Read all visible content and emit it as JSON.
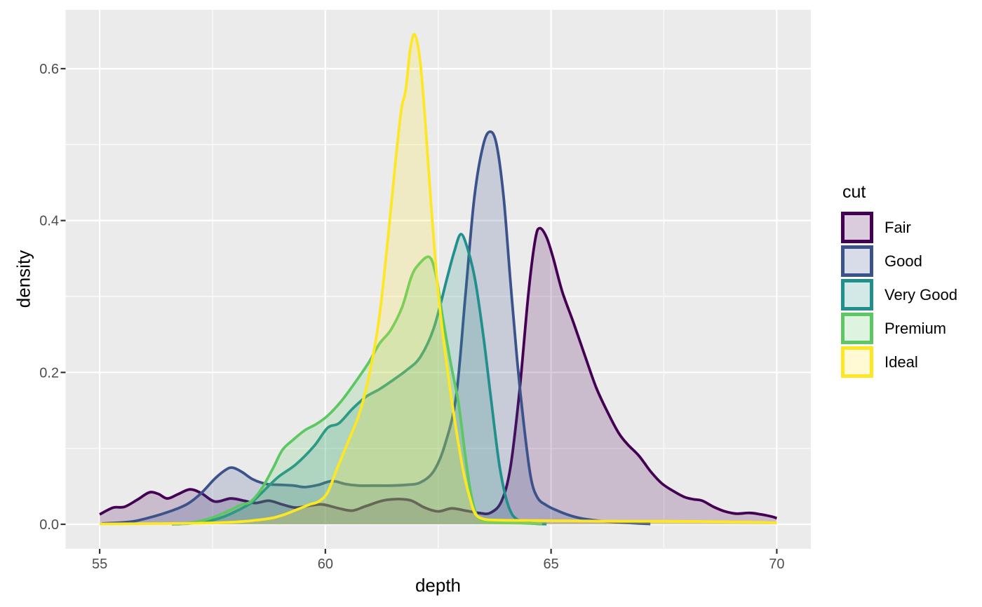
{
  "chart_data": {
    "type": "area",
    "subtype": "kernel-density",
    "title": "",
    "xlabel": "depth",
    "ylabel": "density",
    "legend_title": "cut",
    "legend_position": "right",
    "grid": "major-and-minor-on",
    "x_ticks": {
      "values": [
        55,
        60,
        65,
        70
      ],
      "labels": [
        "55",
        "60",
        "65",
        "70"
      ]
    },
    "y_ticks": {
      "values": [
        0.0,
        0.2,
        0.4,
        0.6
      ],
      "labels": [
        "0.0",
        "0.2",
        "0.4",
        "0.6"
      ]
    },
    "xlim": [
      54.245,
      70.755
    ],
    "ylim": [
      -0.0323,
      0.6775
    ],
    "panel_bg_color": "#EBEBEB",
    "grid_color": "#FFFFFF",
    "tick_mark_color": "#333333",
    "tick_label_color": "#4D4D4D",
    "fill_alpha": 0.2,
    "line_width": 3.8,
    "series": [
      {
        "name": "Fair",
        "color": "#440154",
        "points": [
          [
            55.0,
            0.013
          ],
          [
            55.3,
            0.022
          ],
          [
            55.55,
            0.023
          ],
          [
            55.85,
            0.033
          ],
          [
            56.1,
            0.042
          ],
          [
            56.3,
            0.04
          ],
          [
            56.5,
            0.034
          ],
          [
            56.75,
            0.04
          ],
          [
            57.0,
            0.046
          ],
          [
            57.25,
            0.041
          ],
          [
            57.55,
            0.03
          ],
          [
            57.9,
            0.034
          ],
          [
            58.2,
            0.031
          ],
          [
            58.45,
            0.028
          ],
          [
            58.75,
            0.031
          ],
          [
            59.05,
            0.026
          ],
          [
            59.35,
            0.022
          ],
          [
            59.7,
            0.025
          ],
          [
            59.95,
            0.026
          ],
          [
            60.3,
            0.021
          ],
          [
            60.6,
            0.018
          ],
          [
            60.9,
            0.024
          ],
          [
            61.35,
            0.032
          ],
          [
            61.85,
            0.032
          ],
          [
            62.2,
            0.022
          ],
          [
            62.5,
            0.017
          ],
          [
            62.8,
            0.021
          ],
          [
            63.1,
            0.018
          ],
          [
            63.4,
            0.015
          ],
          [
            63.65,
            0.015
          ],
          [
            63.9,
            0.03
          ],
          [
            64.1,
            0.075
          ],
          [
            64.3,
            0.175
          ],
          [
            64.5,
            0.305
          ],
          [
            64.65,
            0.375
          ],
          [
            64.75,
            0.39
          ],
          [
            64.9,
            0.378
          ],
          [
            65.05,
            0.35
          ],
          [
            65.25,
            0.306
          ],
          [
            65.5,
            0.265
          ],
          [
            65.75,
            0.222
          ],
          [
            66.0,
            0.18
          ],
          [
            66.25,
            0.148
          ],
          [
            66.5,
            0.12
          ],
          [
            66.7,
            0.105
          ],
          [
            66.95,
            0.09
          ],
          [
            67.2,
            0.07
          ],
          [
            67.45,
            0.054
          ],
          [
            67.7,
            0.044
          ],
          [
            67.95,
            0.036
          ],
          [
            68.15,
            0.033
          ],
          [
            68.35,
            0.031
          ],
          [
            68.6,
            0.023
          ],
          [
            68.85,
            0.017
          ],
          [
            69.1,
            0.014
          ],
          [
            69.4,
            0.015
          ],
          [
            69.65,
            0.013
          ],
          [
            69.9,
            0.01
          ],
          [
            70.0,
            0.008
          ]
        ]
      },
      {
        "name": "Good",
        "color": "#3B528B",
        "points": [
          [
            55.05,
            0.001
          ],
          [
            55.4,
            0.002
          ],
          [
            55.75,
            0.004
          ],
          [
            56.05,
            0.008
          ],
          [
            56.35,
            0.013
          ],
          [
            56.65,
            0.019
          ],
          [
            56.95,
            0.027
          ],
          [
            57.25,
            0.041
          ],
          [
            57.55,
            0.06
          ],
          [
            57.8,
            0.072
          ],
          [
            57.95,
            0.0745
          ],
          [
            58.15,
            0.069
          ],
          [
            58.4,
            0.059
          ],
          [
            58.7,
            0.053
          ],
          [
            59.0,
            0.052
          ],
          [
            59.3,
            0.051
          ],
          [
            59.55,
            0.049
          ],
          [
            59.85,
            0.052
          ],
          [
            60.15,
            0.057
          ],
          [
            60.45,
            0.053
          ],
          [
            60.75,
            0.051
          ],
          [
            61.1,
            0.051
          ],
          [
            61.45,
            0.051
          ],
          [
            61.8,
            0.052
          ],
          [
            62.1,
            0.055
          ],
          [
            62.4,
            0.07
          ],
          [
            62.65,
            0.105
          ],
          [
            62.9,
            0.17
          ],
          [
            63.1,
            0.3
          ],
          [
            63.3,
            0.43
          ],
          [
            63.5,
            0.5
          ],
          [
            63.66,
            0.517
          ],
          [
            63.8,
            0.498
          ],
          [
            63.95,
            0.43
          ],
          [
            64.1,
            0.32
          ],
          [
            64.25,
            0.215
          ],
          [
            64.4,
            0.13
          ],
          [
            64.55,
            0.062
          ],
          [
            64.7,
            0.035
          ],
          [
            64.9,
            0.025
          ],
          [
            65.1,
            0.019
          ],
          [
            65.35,
            0.013
          ],
          [
            65.65,
            0.008
          ],
          [
            66.0,
            0.005
          ],
          [
            66.4,
            0.003
          ],
          [
            66.8,
            0.0015
          ],
          [
            67.2,
            0.0005
          ]
        ]
      },
      {
        "name": "Very Good",
        "color": "#21908C",
        "points": [
          [
            56.6,
            0.0003
          ],
          [
            57.0,
            0.001
          ],
          [
            57.4,
            0.004
          ],
          [
            57.75,
            0.01
          ],
          [
            58.05,
            0.018
          ],
          [
            58.35,
            0.028
          ],
          [
            58.6,
            0.042
          ],
          [
            58.95,
            0.062
          ],
          [
            59.35,
            0.079
          ],
          [
            59.75,
            0.103
          ],
          [
            60.05,
            0.127
          ],
          [
            60.3,
            0.133
          ],
          [
            60.6,
            0.152
          ],
          [
            60.9,
            0.168
          ],
          [
            61.2,
            0.178
          ],
          [
            61.5,
            0.19
          ],
          [
            61.8,
            0.203
          ],
          [
            62.1,
            0.22
          ],
          [
            62.4,
            0.258
          ],
          [
            62.7,
            0.325
          ],
          [
            62.85,
            0.358
          ],
          [
            63.0,
            0.382
          ],
          [
            63.15,
            0.363
          ],
          [
            63.32,
            0.321
          ],
          [
            63.5,
            0.248
          ],
          [
            63.68,
            0.16
          ],
          [
            63.85,
            0.08
          ],
          [
            64.0,
            0.035
          ],
          [
            64.15,
            0.012
          ],
          [
            64.35,
            0.004
          ],
          [
            64.6,
            0.001
          ],
          [
            64.9,
            0.0003
          ]
        ]
      },
      {
        "name": "Premium",
        "color": "#5DC863",
        "points": [
          [
            56.8,
            0.0005
          ],
          [
            57.2,
            0.004
          ],
          [
            57.55,
            0.01
          ],
          [
            57.9,
            0.019
          ],
          [
            58.15,
            0.026
          ],
          [
            58.35,
            0.03
          ],
          [
            58.6,
            0.048
          ],
          [
            58.85,
            0.075
          ],
          [
            59.05,
            0.098
          ],
          [
            59.3,
            0.112
          ],
          [
            59.55,
            0.124
          ],
          [
            59.8,
            0.132
          ],
          [
            60.05,
            0.143
          ],
          [
            60.35,
            0.162
          ],
          [
            60.65,
            0.186
          ],
          [
            60.95,
            0.212
          ],
          [
            61.2,
            0.238
          ],
          [
            61.45,
            0.256
          ],
          [
            61.7,
            0.286
          ],
          [
            61.9,
            0.325
          ],
          [
            62.05,
            0.341
          ],
          [
            62.3,
            0.352
          ],
          [
            62.45,
            0.328
          ],
          [
            62.6,
            0.272
          ],
          [
            62.8,
            0.205
          ],
          [
            62.95,
            0.16
          ],
          [
            63.1,
            0.09
          ],
          [
            63.22,
            0.042
          ],
          [
            63.35,
            0.012
          ],
          [
            63.5,
            0.004
          ],
          [
            63.8,
            0.002
          ],
          [
            64.3,
            0.0015
          ],
          [
            64.8,
            0.0005
          ]
        ]
      },
      {
        "name": "Ideal",
        "color": "#FDE725",
        "points": [
          [
            55.0,
            0.0005
          ],
          [
            56.0,
            0.0008
          ],
          [
            57.0,
            0.0012
          ],
          [
            57.6,
            0.002
          ],
          [
            58.0,
            0.003
          ],
          [
            58.4,
            0.005
          ],
          [
            58.8,
            0.008
          ],
          [
            59.1,
            0.013
          ],
          [
            59.4,
            0.02
          ],
          [
            59.65,
            0.026
          ],
          [
            59.85,
            0.03
          ],
          [
            60.05,
            0.042
          ],
          [
            60.25,
            0.072
          ],
          [
            60.5,
            0.108
          ],
          [
            60.77,
            0.149
          ],
          [
            61.0,
            0.205
          ],
          [
            61.2,
            0.275
          ],
          [
            61.4,
            0.385
          ],
          [
            61.55,
            0.475
          ],
          [
            61.68,
            0.545
          ],
          [
            61.78,
            0.572
          ],
          [
            61.88,
            0.625
          ],
          [
            61.98,
            0.645
          ],
          [
            62.1,
            0.61
          ],
          [
            62.22,
            0.525
          ],
          [
            62.35,
            0.415
          ],
          [
            62.5,
            0.305
          ],
          [
            62.65,
            0.228
          ],
          [
            62.85,
            0.143
          ],
          [
            63.05,
            0.072
          ],
          [
            63.2,
            0.035
          ],
          [
            63.32,
            0.014
          ],
          [
            63.5,
            0.007
          ],
          [
            63.8,
            0.0055
          ],
          [
            64.5,
            0.005
          ],
          [
            65.5,
            0.0045
          ],
          [
            66.5,
            0.004
          ],
          [
            67.5,
            0.004
          ],
          [
            68.5,
            0.0035
          ],
          [
            69.3,
            0.003
          ],
          [
            70.0,
            0.002
          ]
        ]
      }
    ]
  },
  "legend": {
    "title": "cut",
    "item_labels": [
      "Fair",
      "Good",
      "Very Good",
      "Premium",
      "Ideal"
    ]
  }
}
